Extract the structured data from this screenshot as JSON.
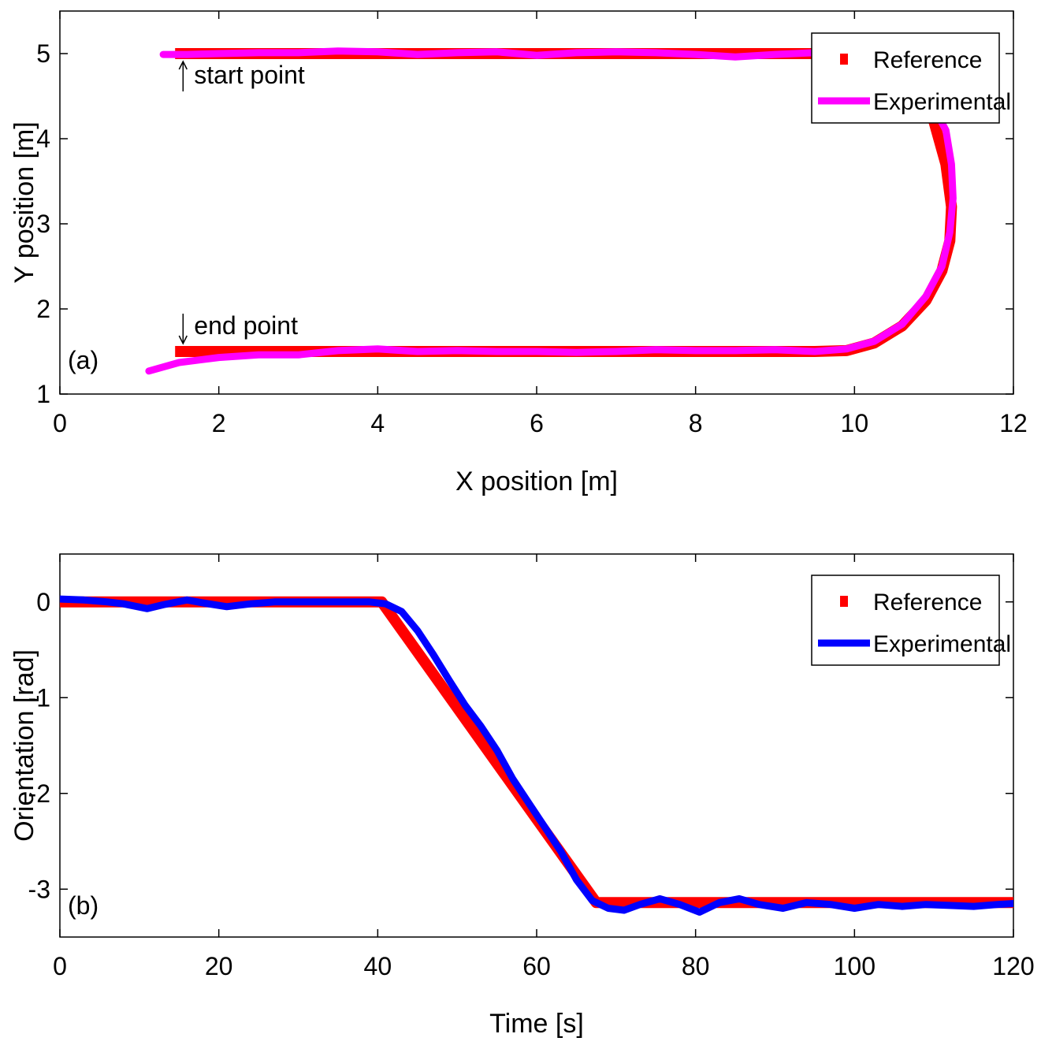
{
  "chart_data": [
    {
      "type": "line",
      "panel_label": "(a)",
      "xlabel": "X position [m]",
      "ylabel": "Y position [m]",
      "xlim": [
        0,
        12
      ],
      "ylim": [
        1,
        5.5
      ],
      "xticks": [
        0,
        2,
        4,
        6,
        8,
        10,
        12
      ],
      "yticks": [
        1,
        2,
        3,
        4,
        5
      ],
      "grid": false,
      "legend_position": "top-right",
      "legend": [
        "Reference",
        "Experimental"
      ],
      "annotations": [
        {
          "text": "start point",
          "arrow": "up",
          "x": 1.55,
          "y": 5.0
        },
        {
          "text": "end point",
          "arrow": "down",
          "x": 1.55,
          "y": 1.5
        }
      ],
      "series": [
        {
          "name": "Reference",
          "color": "#ff0000",
          "points": [
            [
              1.45,
              5.0
            ],
            [
              2,
              5.0
            ],
            [
              3,
              5.0
            ],
            [
              4,
              5.0
            ],
            [
              5,
              5.0
            ],
            [
              6,
              5.0
            ],
            [
              7,
              5.0
            ],
            [
              8,
              5.0
            ],
            [
              9,
              5.0
            ],
            [
              9.7,
              5.0
            ],
            [
              10.15,
              4.98
            ],
            [
              10.5,
              4.86
            ],
            [
              10.8,
              4.55
            ],
            [
              11.0,
              4.2
            ],
            [
              11.15,
              3.7
            ],
            [
              11.22,
              3.2
            ],
            [
              11.2,
              2.8
            ],
            [
              11.1,
              2.45
            ],
            [
              10.9,
              2.1
            ],
            [
              10.6,
              1.8
            ],
            [
              10.25,
              1.6
            ],
            [
              9.9,
              1.51
            ],
            [
              9.5,
              1.5
            ],
            [
              9,
              1.5
            ],
            [
              8,
              1.5
            ],
            [
              7,
              1.5
            ],
            [
              6,
              1.5
            ],
            [
              5,
              1.5
            ],
            [
              4,
              1.5
            ],
            [
              3,
              1.5
            ],
            [
              2,
              1.5
            ],
            [
              1.45,
              1.5
            ]
          ]
        },
        {
          "name": "Experimental",
          "color": "#ff00ff",
          "points": [
            [
              1.3,
              4.99
            ],
            [
              1.6,
              4.99
            ],
            [
              2.0,
              5.0
            ],
            [
              2.5,
              5.01
            ],
            [
              3.0,
              5.01
            ],
            [
              3.5,
              5.03
            ],
            [
              4.0,
              5.02
            ],
            [
              4.5,
              4.99
            ],
            [
              5.0,
              5.01
            ],
            [
              5.5,
              5.02
            ],
            [
              6.0,
              4.98
            ],
            [
              6.5,
              5.01
            ],
            [
              7.0,
              5.02
            ],
            [
              7.5,
              5.01
            ],
            [
              8.0,
              4.99
            ],
            [
              8.5,
              4.96
            ],
            [
              9.0,
              4.99
            ],
            [
              9.5,
              5.01
            ],
            [
              9.9,
              5.0
            ],
            [
              10.3,
              4.95
            ],
            [
              10.7,
              4.75
            ],
            [
              10.95,
              4.45
            ],
            [
              11.15,
              4.1
            ],
            [
              11.22,
              3.7
            ],
            [
              11.24,
              3.3
            ],
            [
              11.2,
              2.9
            ],
            [
              11.1,
              2.5
            ],
            [
              10.9,
              2.15
            ],
            [
              10.6,
              1.82
            ],
            [
              10.25,
              1.62
            ],
            [
              9.9,
              1.53
            ],
            [
              9.5,
              1.5
            ],
            [
              9.0,
              1.52
            ],
            [
              8.5,
              1.51
            ],
            [
              8.0,
              1.51
            ],
            [
              7.5,
              1.52
            ],
            [
              7.0,
              1.5
            ],
            [
              6.5,
              1.49
            ],
            [
              6.0,
              1.5
            ],
            [
              5.5,
              1.5
            ],
            [
              5.0,
              1.51
            ],
            [
              4.5,
              1.5
            ],
            [
              4.0,
              1.53
            ],
            [
              3.5,
              1.51
            ],
            [
              3.0,
              1.46
            ],
            [
              2.5,
              1.46
            ],
            [
              2.0,
              1.43
            ],
            [
              1.5,
              1.37
            ],
            [
              1.12,
              1.27
            ]
          ]
        }
      ]
    },
    {
      "type": "line",
      "panel_label": "(b)",
      "xlabel": "Time [s]",
      "ylabel": "Orientation [rad]",
      "xlim": [
        0,
        120
      ],
      "ylim": [
        -3.5,
        0.5
      ],
      "xticks": [
        0,
        20,
        40,
        60,
        80,
        100,
        120
      ],
      "yticks": [
        0,
        -1,
        -2,
        -3
      ],
      "grid": false,
      "legend_position": "top-right",
      "legend": [
        "Reference",
        "Experimental"
      ],
      "series": [
        {
          "name": "Reference",
          "color": "#ff0000",
          "points": [
            [
              0,
              0
            ],
            [
              40.5,
              0
            ],
            [
              67.5,
              -3.14
            ],
            [
              120,
              -3.14
            ]
          ]
        },
        {
          "name": "Experimental",
          "color": "#0000ff",
          "points": [
            [
              0,
              0.03
            ],
            [
              3,
              0.02
            ],
            [
              6,
              0.0
            ],
            [
              8,
              -0.02
            ],
            [
              11,
              -0.07
            ],
            [
              13,
              -0.03
            ],
            [
              16,
              0.02
            ],
            [
              18,
              -0.01
            ],
            [
              21,
              -0.05
            ],
            [
              24,
              -0.02
            ],
            [
              27,
              0.0
            ],
            [
              30,
              0.0
            ],
            [
              33,
              0.0
            ],
            [
              36,
              0.0
            ],
            [
              39,
              0.0
            ],
            [
              41,
              -0.02
            ],
            [
              43,
              -0.1
            ],
            [
              45,
              -0.3
            ],
            [
              47,
              -0.55
            ],
            [
              49,
              -0.82
            ],
            [
              51,
              -1.08
            ],
            [
              53,
              -1.3
            ],
            [
              55,
              -1.55
            ],
            [
              57,
              -1.85
            ],
            [
              59,
              -2.1
            ],
            [
              61,
              -2.35
            ],
            [
              63,
              -2.6
            ],
            [
              65,
              -2.9
            ],
            [
              67,
              -3.12
            ],
            [
              69,
              -3.2
            ],
            [
              71,
              -3.22
            ],
            [
              73,
              -3.16
            ],
            [
              75.5,
              -3.1
            ],
            [
              78,
              -3.16
            ],
            [
              80.5,
              -3.24
            ],
            [
              83,
              -3.14
            ],
            [
              85.5,
              -3.1
            ],
            [
              88,
              -3.16
            ],
            [
              91,
              -3.2
            ],
            [
              94,
              -3.14
            ],
            [
              97,
              -3.16
            ],
            [
              100,
              -3.2
            ],
            [
              103,
              -3.16
            ],
            [
              106,
              -3.18
            ],
            [
              109,
              -3.16
            ],
            [
              112,
              -3.17
            ],
            [
              115,
              -3.18
            ],
            [
              118,
              -3.16
            ],
            [
              120,
              -3.15
            ]
          ]
        }
      ]
    }
  ]
}
